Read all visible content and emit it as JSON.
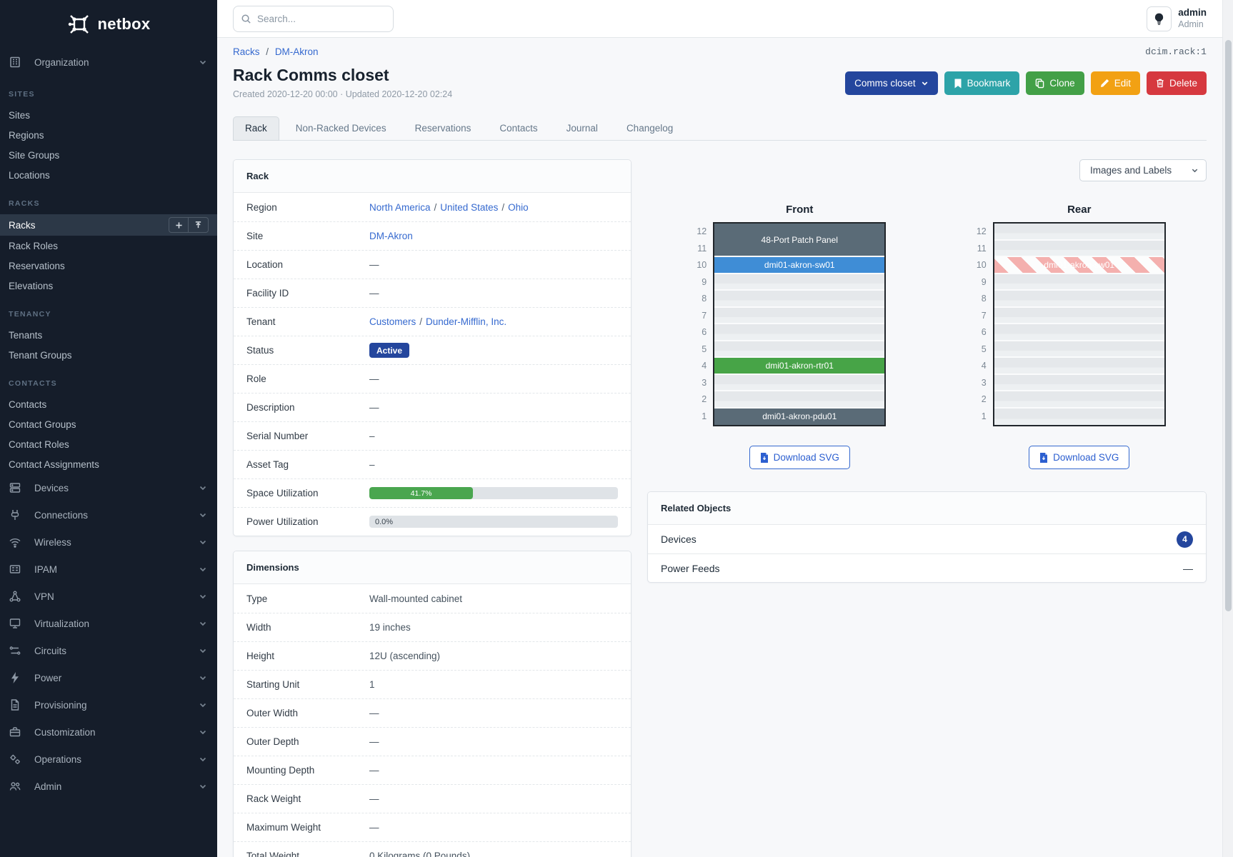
{
  "app": {
    "brand": "netbox"
  },
  "header": {
    "search_placeholder": "Search...",
    "user_name": "admin",
    "user_role": "Admin"
  },
  "sidebar": {
    "organization": "Organization",
    "sections": [
      {
        "title": "SITES",
        "items": [
          "Sites",
          "Regions",
          "Site Groups",
          "Locations"
        ]
      },
      {
        "title": "RACKS",
        "items": [
          "Racks",
          "Rack Roles",
          "Reservations",
          "Elevations"
        ],
        "active": "Racks"
      },
      {
        "title": "TENANCY",
        "items": [
          "Tenants",
          "Tenant Groups"
        ]
      },
      {
        "title": "CONTACTS",
        "items": [
          "Contacts",
          "Contact Groups",
          "Contact Roles",
          "Contact Assignments"
        ]
      }
    ],
    "groups": [
      {
        "label": "Devices"
      },
      {
        "label": "Connections"
      },
      {
        "label": "Wireless"
      },
      {
        "label": "IPAM"
      },
      {
        "label": "VPN"
      },
      {
        "label": "Virtualization"
      },
      {
        "label": "Circuits"
      },
      {
        "label": "Power"
      },
      {
        "label": "Provisioning"
      },
      {
        "label": "Customization"
      },
      {
        "label": "Operations"
      },
      {
        "label": "Admin"
      }
    ]
  },
  "page": {
    "breadcrumb": [
      "Racks",
      "DM-Akron"
    ],
    "object_id": "dcim.rack:1",
    "title": "Rack Comms closet",
    "meta": "Created 2020-12-20 00:00 · Updated 2020-12-20 02:24",
    "actions": {
      "group_button": "Comms closet",
      "bookmark": "Bookmark",
      "clone": "Clone",
      "edit": "Edit",
      "delete": "Delete"
    },
    "tabs": [
      "Rack",
      "Non-Racked Devices",
      "Reservations",
      "Contacts",
      "Journal",
      "Changelog"
    ],
    "active_tab": "Rack"
  },
  "rack_panel": {
    "title": "Rack",
    "region_label": "Region",
    "region": [
      "North America",
      "United States",
      "Ohio"
    ],
    "site_label": "Site",
    "site": "DM-Akron",
    "location_label": "Location",
    "location": "—",
    "facility_label": "Facility ID",
    "facility": "—",
    "tenant_label": "Tenant",
    "tenant": [
      "Customers",
      "Dunder-Mifflin, Inc."
    ],
    "status_label": "Status",
    "status": "Active",
    "role_label": "Role",
    "role": "—",
    "description_label": "Description",
    "description": "—",
    "serial_label": "Serial Number",
    "serial": "–",
    "asset_label": "Asset Tag",
    "asset": "–",
    "space_label": "Space Utilization",
    "space_percent": 41.7,
    "space_text": "41.7%",
    "power_label": "Power Utilization",
    "power_percent": 0,
    "power_text": "0.0%"
  },
  "dimensions_panel": {
    "title": "Dimensions",
    "rows": [
      {
        "label": "Type",
        "value": "Wall-mounted cabinet"
      },
      {
        "label": "Width",
        "value": "19 inches"
      },
      {
        "label": "Height",
        "value": "12U (ascending)"
      },
      {
        "label": "Starting Unit",
        "value": "1"
      },
      {
        "label": "Outer Width",
        "value": "—"
      },
      {
        "label": "Outer Depth",
        "value": "—"
      },
      {
        "label": "Mounting Depth",
        "value": "—"
      },
      {
        "label": "Rack Weight",
        "value": "—"
      },
      {
        "label": "Maximum Weight",
        "value": "—"
      },
      {
        "label": "Total Weight",
        "value": "0 Kilograms (0 Pounds)"
      }
    ]
  },
  "elevations": {
    "view_select": "Images and Labels",
    "download_label": "Download SVG",
    "unit_count": 12,
    "front": {
      "title": "Front",
      "devices": [
        {
          "name": "48-Port Patch Panel",
          "top_unit": 12,
          "height": 2,
          "style": "slate"
        },
        {
          "name": "dmi01-akron-sw01",
          "top_unit": 10,
          "height": 1,
          "style": "blue"
        },
        {
          "name": "dmi01-akron-rtr01",
          "top_unit": 4,
          "height": 1,
          "style": "green"
        },
        {
          "name": "dmi01-akron-pdu01",
          "top_unit": 1,
          "height": 1,
          "style": "slate"
        }
      ]
    },
    "rear": {
      "title": "Rear",
      "devices": [
        {
          "name": "dmi01-akron-sw01",
          "top_unit": 10,
          "height": 1,
          "style": "striped"
        }
      ]
    }
  },
  "related_panel": {
    "title": "Related Objects",
    "rows": [
      {
        "label": "Devices",
        "count": "4"
      },
      {
        "label": "Power Feeds",
        "count": "—"
      }
    ]
  },
  "colors": {
    "primary_blue": "#24469d",
    "link_blue": "#3569cf",
    "teal": "#2da3a8",
    "green": "#43a047",
    "amber": "#f2a113",
    "red": "#d6393f",
    "progress_green": "#4aa64f",
    "device_blue": "#3f8dd6",
    "device_green": "#47a447",
    "device_slate": "#5a6b77",
    "sidebar_bg": "#151d2a"
  }
}
